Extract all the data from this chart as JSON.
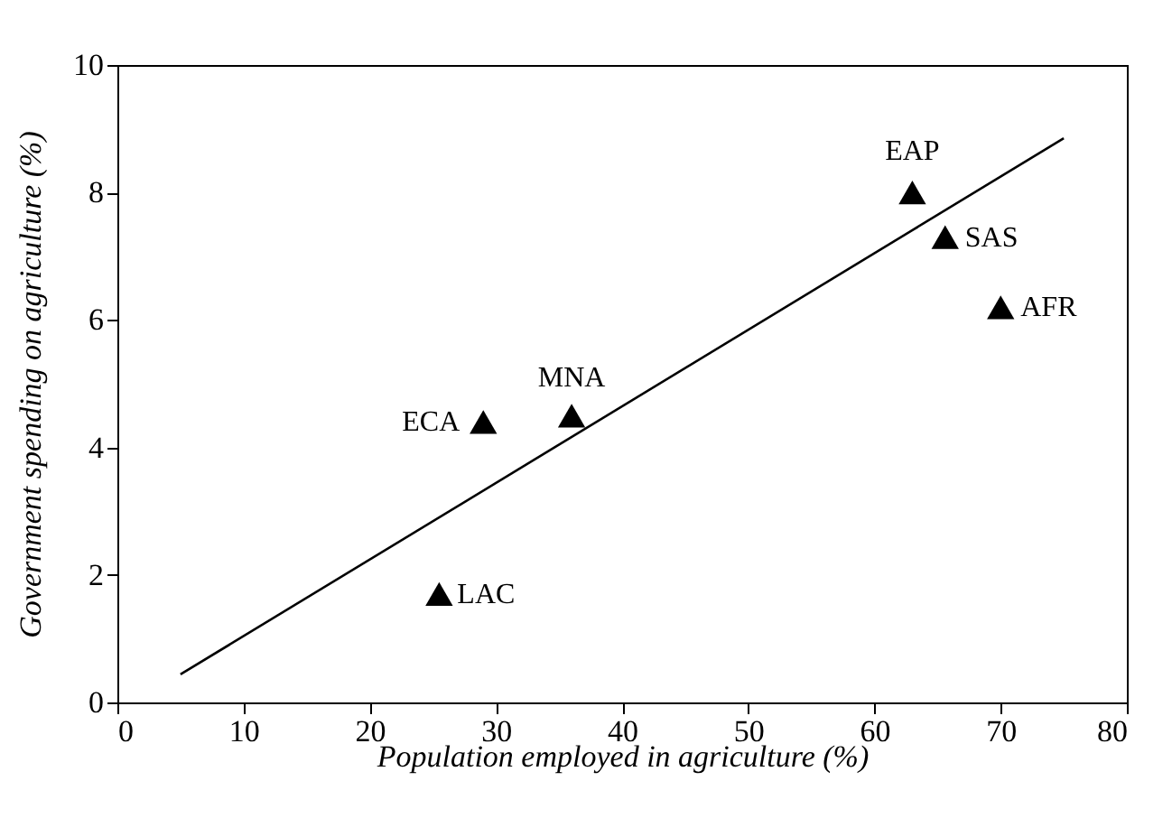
{
  "chart_data": {
    "type": "scatter",
    "xlabel": "Population employed in agriculture (%)",
    "ylabel": "Government spending on agriculture (%)",
    "xlim": [
      0,
      80
    ],
    "xticks": [
      0,
      10,
      20,
      30,
      40,
      50,
      60,
      70,
      80
    ],
    "ylim": [
      0,
      10
    ],
    "yticks": [
      0,
      2,
      4,
      6,
      8,
      10
    ],
    "grid": false,
    "series": [
      {
        "marker": "triangle",
        "color": "#000000",
        "x": [
          25.5,
          29,
          36,
          63,
          65.6,
          70
        ],
        "values": [
          1.7,
          4.4,
          4.5,
          8.0,
          7.3,
          6.2
        ]
      },
      {
        "type": "line",
        "marker": "none",
        "line_style": "solid",
        "color": "#000000",
        "x": [
          5,
          75
        ],
        "values": [
          0.44,
          8.85
        ]
      }
    ],
    "annotations": [
      {
        "text": "LAC",
        "x": 25.5,
        "y": 1.7
      },
      {
        "text": "ECA",
        "x": 29,
        "y": 4.4
      },
      {
        "text": "MNA",
        "x": 36,
        "y": 4.5
      },
      {
        "text": "EAP",
        "x": 63,
        "y": 8.0
      },
      {
        "text": "SAS",
        "x": 65.6,
        "y": 7.3
      },
      {
        "text": "AFR",
        "x": 70,
        "y": 6.2
      }
    ]
  }
}
